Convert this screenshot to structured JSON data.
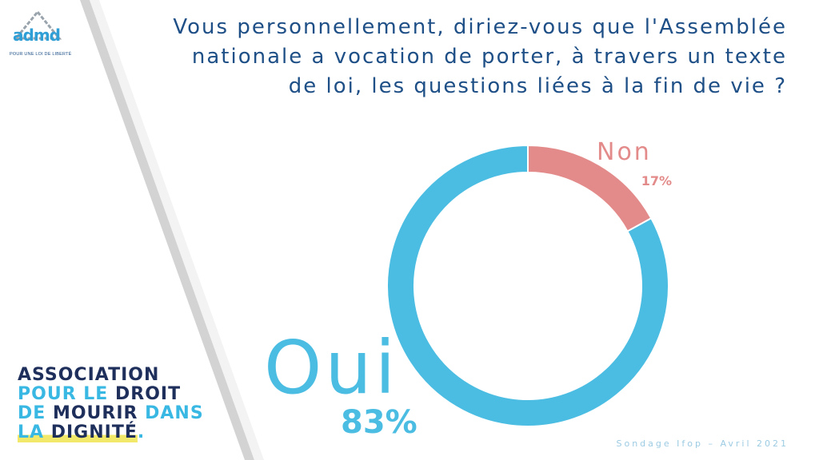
{
  "header": {
    "logo_text": "admd",
    "logo_tagline": "POUR UNE LOI DE LIBERTÉ",
    "question_lines": [
      "Vous personnellement, diriez-vous que l'Assemblée",
      "nationale a vocation de porter, à travers un texte",
      "de loi, les questions liées à la fin de vie ?"
    ]
  },
  "association": {
    "line1": "ASSOCIATION",
    "line2a": "POUR LE ",
    "line2b": "DROIT",
    "line3a": "DE ",
    "line3b": "MOURIR ",
    "line3c": "DANS",
    "line4a": "LA ",
    "line4b": "DIGNITÉ",
    "line4c": "."
  },
  "footer": {
    "source": "Sondage Ifop – Avril 2021"
  },
  "colors": {
    "oui": "#4bbde2",
    "non": "#e38b8a",
    "title": "#1e4f86",
    "dark_navy": "#1f2f5c"
  },
  "chart_data": {
    "type": "pie",
    "title": "",
    "categories": [
      "Non",
      "Oui"
    ],
    "values": [
      17,
      83
    ],
    "value_labels": [
      "17%",
      "83%"
    ],
    "start": "top",
    "direction": "clockwise",
    "hole": "donut"
  }
}
